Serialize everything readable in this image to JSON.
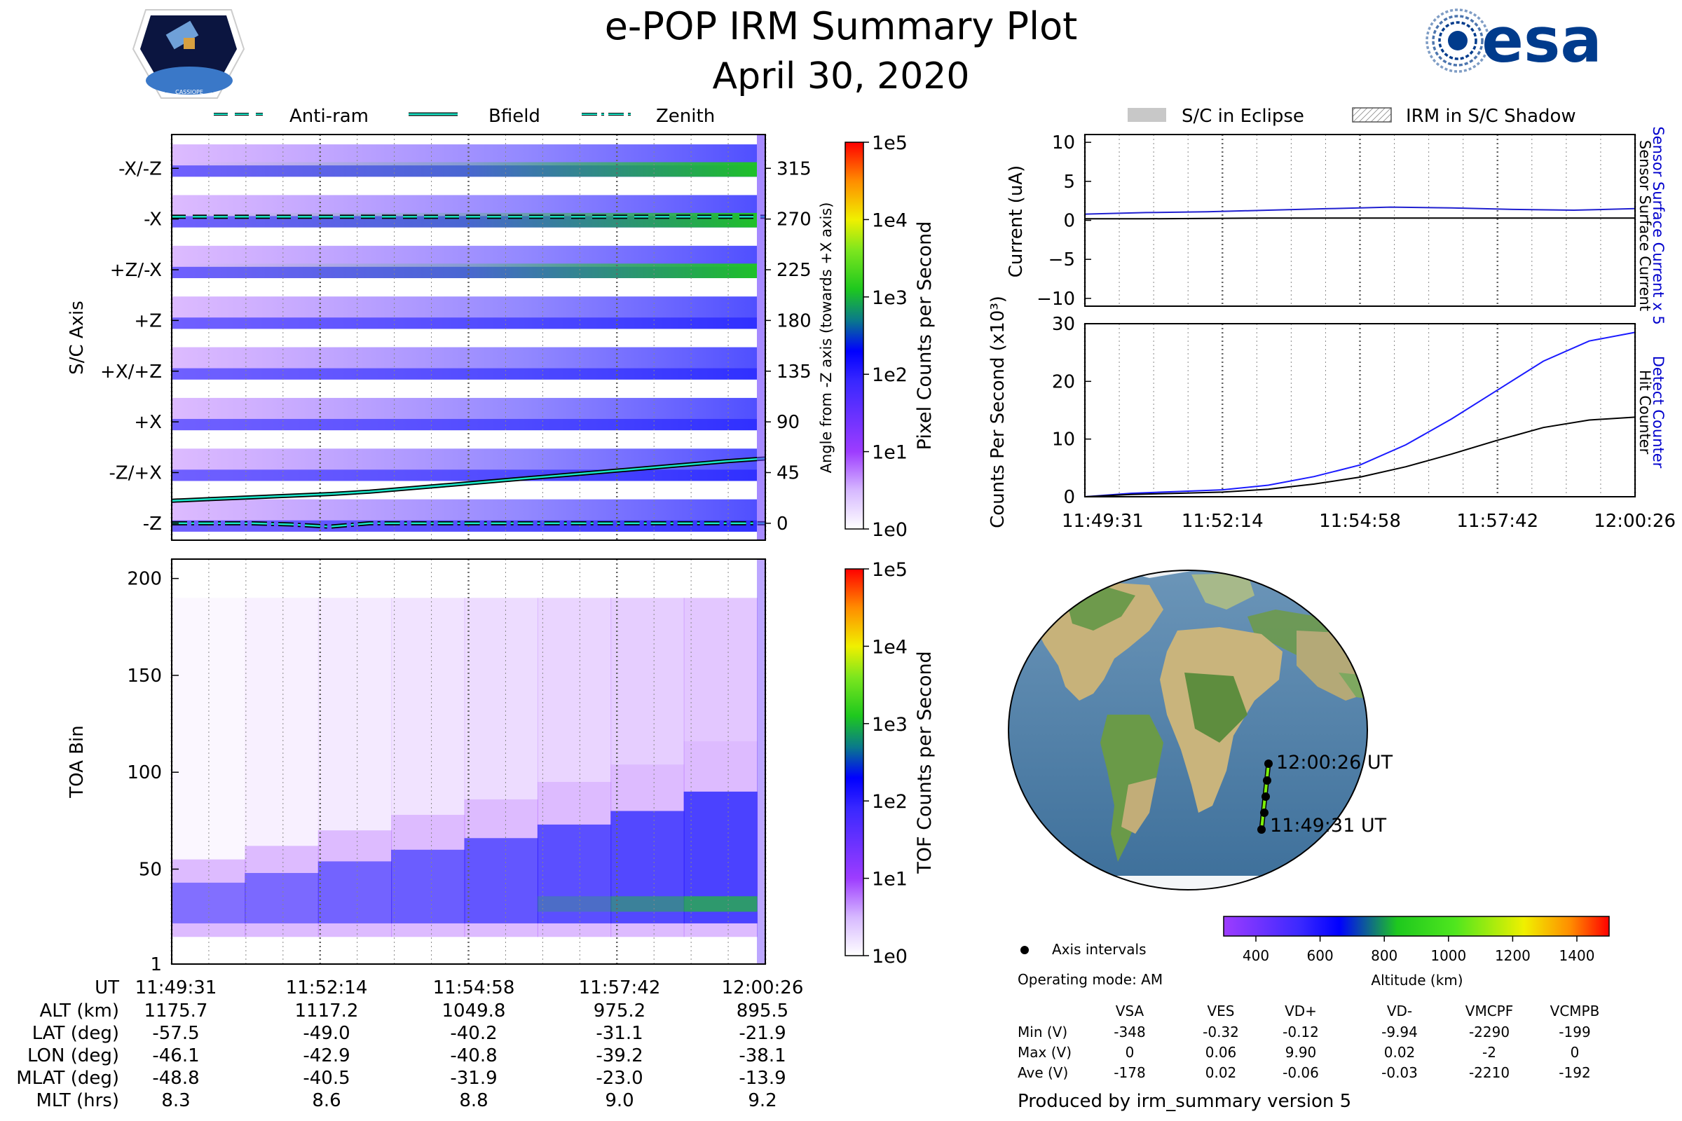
{
  "header": {
    "title": "e-POP IRM Summary Plot",
    "date": "April 30, 2020",
    "left_logo_text": "CASSIOPE",
    "right_logo_text": "esa"
  },
  "colors": {
    "line_cyan": "#19e6c8",
    "spec_blue": "#1515ff",
    "spec_purple": "#9d3cff",
    "spec_green": "#1ec81e",
    "current_blue": "#2020d0",
    "counts_blue": "#1a1aff"
  },
  "chart_data": [
    {
      "id": "sc-axis-spectrogram",
      "type": "heatmap",
      "legend": [
        "Anti-ram",
        "Bfield",
        "Zenith"
      ],
      "ylabel": "S/C Axis",
      "y_tick_labels": [
        "-X/-Z",
        "-X",
        "+Z/-X",
        "+Z",
        "+X/+Z",
        "+X",
        "-Z/+X",
        "-Z"
      ],
      "right_ylabel": "Angle from -Z axis (towards +X axis)",
      "right_tick_values": [
        315,
        270,
        225,
        180,
        135,
        90,
        45,
        0
      ],
      "ylim": [
        -15,
        345
      ],
      "x_times": [
        "11:49:31",
        "11:52:14",
        "11:54:58",
        "11:57:42",
        "12:00:26"
      ],
      "bfield_angle": [
        20,
        21.5,
        23,
        24.5,
        26,
        28,
        31,
        34,
        37,
        40,
        43,
        46,
        49,
        52,
        55,
        57.5
      ],
      "antiram_angle": [
        272,
        272,
        272,
        272,
        272,
        272,
        272,
        272,
        272,
        272,
        272,
        272,
        272,
        272,
        272,
        272
      ],
      "zenith_angle": [
        0,
        0,
        0,
        -1,
        -3,
        0,
        0,
        0,
        0,
        0,
        0,
        0,
        0,
        0,
        0,
        0
      ],
      "colorbar": {
        "label": "Pixel Counts per Second",
        "ticks": [
          "1e0",
          "1e1",
          "1e2",
          "1e3",
          "1e4",
          "1e5"
        ]
      }
    },
    {
      "id": "toa-spectrogram",
      "type": "heatmap",
      "ylabel": "TOA Bin",
      "y_ticks": [
        1,
        50,
        100,
        150,
        200
      ],
      "ylim": [
        1,
        210
      ],
      "band_center": [
        35,
        38,
        42,
        46,
        50,
        55,
        60,
        68
      ],
      "colorbar": {
        "label": "TOF Counts per Second",
        "ticks": [
          "1e0",
          "1e1",
          "1e2",
          "1e3",
          "1e4",
          "1e5"
        ]
      }
    },
    {
      "id": "current-plot",
      "type": "line",
      "legend": [
        "S/C in Eclipse",
        "IRM in S/C Shadow"
      ],
      "ylabel": "Current (uA)",
      "y_ticks": [
        10,
        5,
        0,
        -5,
        -10
      ],
      "ylim": [
        -11,
        11
      ],
      "series": [
        {
          "name": "Sensor Surface Current x 5",
          "values": [
            0.8,
            1.0,
            1.1,
            1.3,
            1.5,
            1.7,
            1.6,
            1.4,
            1.3,
            1.5
          ]
        },
        {
          "name": "Sensor Surface Current",
          "values": [
            0.2,
            0.2,
            0.25,
            0.3,
            0.3,
            0.3,
            0.3,
            0.3,
            0.3,
            0.3
          ]
        }
      ]
    },
    {
      "id": "counts-plot",
      "type": "line",
      "ylabel": "Counts Per Second (x10³)",
      "y_ticks": [
        0,
        10,
        20,
        30
      ],
      "ylim": [
        0,
        30
      ],
      "x_tick_labels": [
        "11:49:31",
        "11:52:14",
        "11:54:58",
        "11:57:42",
        "12:00:26"
      ],
      "series": [
        {
          "name": "Detect Counter",
          "values": [
            0,
            0.6,
            0.9,
            1.2,
            2.0,
            3.5,
            5.5,
            9.0,
            13.5,
            18.5,
            23.5,
            27.0,
            28.5
          ]
        },
        {
          "name": "Hit Counter",
          "values": [
            0,
            0.4,
            0.6,
            0.8,
            1.3,
            2.2,
            3.4,
            5.2,
            7.4,
            9.8,
            12.0,
            13.3,
            13.8
          ]
        }
      ]
    },
    {
      "id": "orbit-map",
      "type": "scatter",
      "track_start_label": "11:49:31 UT",
      "track_end_label": "12:00:26 UT",
      "axis_intervals_label": "Axis intervals",
      "colorbar": {
        "label": "Altitude (km)",
        "ticks": [
          400,
          600,
          800,
          1000,
          1200,
          1400
        ]
      }
    }
  ],
  "ephemeris": {
    "labels": [
      "UT",
      "ALT (km)",
      "LAT (deg)",
      "LON (deg)",
      "MLAT (deg)",
      "MLT (hrs)"
    ],
    "columns": [
      [
        "11:49:31",
        "1175.7",
        "-57.5",
        "-46.1",
        "-48.8",
        "8.3"
      ],
      [
        "11:52:14",
        "1117.2",
        "-49.0",
        "-42.9",
        "-40.5",
        "8.6"
      ],
      [
        "11:54:58",
        "1049.8",
        "-40.2",
        "-40.8",
        "-31.9",
        "8.8"
      ],
      [
        "11:57:42",
        "975.2",
        "-31.1",
        "-39.2",
        "-23.0",
        "9.0"
      ],
      [
        "12:00:26",
        "895.5",
        "-21.9",
        "-38.1",
        "-13.9",
        "9.2"
      ]
    ]
  },
  "voltages": {
    "operating_mode": "Operating mode: AM",
    "headers": [
      "VSA",
      "VES",
      "VD+",
      "VD-",
      "VMCPF",
      "VCMPB"
    ],
    "rows": [
      {
        "label": "Min (V)",
        "values": [
          "-348",
          "-0.32",
          "-0.12",
          "-9.94",
          "-2290",
          "-199"
        ]
      },
      {
        "label": "Max (V)",
        "values": [
          "0",
          "0.06",
          "9.90",
          "0.02",
          "-2",
          "0"
        ]
      },
      {
        "label": "Ave (V)",
        "values": [
          "-178",
          "0.02",
          "-0.06",
          "-0.03",
          "-2210",
          "-192"
        ]
      }
    ]
  },
  "footer": "Produced by irm_summary version 5"
}
